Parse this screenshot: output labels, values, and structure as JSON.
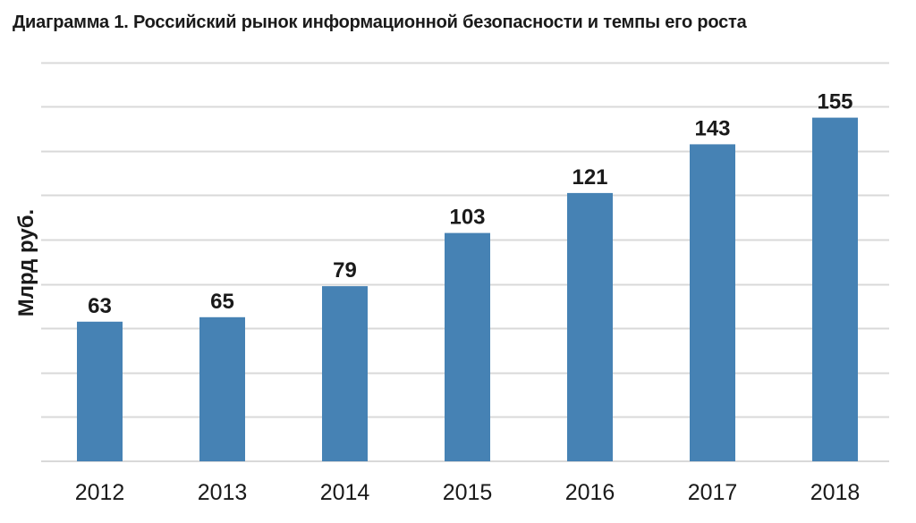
{
  "chart_data": {
    "type": "bar",
    "title": "Диаграмма 1. Российский рынок информационной безопасности и темпы его роста",
    "xlabel": "",
    "ylabel": "Млрд руб.",
    "categories": [
      "2012",
      "2013",
      "2014",
      "2015",
      "2016",
      "2017",
      "2018"
    ],
    "values": [
      63,
      65,
      79,
      103,
      121,
      143,
      155
    ],
    "value_labels": [
      "63",
      "65",
      "79",
      "103",
      "121",
      "143",
      "155"
    ],
    "ylim": [
      0,
      180
    ],
    "grid": true,
    "legend": "none",
    "bar_color": "#4682b4",
    "grid_color": "#d9d9d9"
  }
}
